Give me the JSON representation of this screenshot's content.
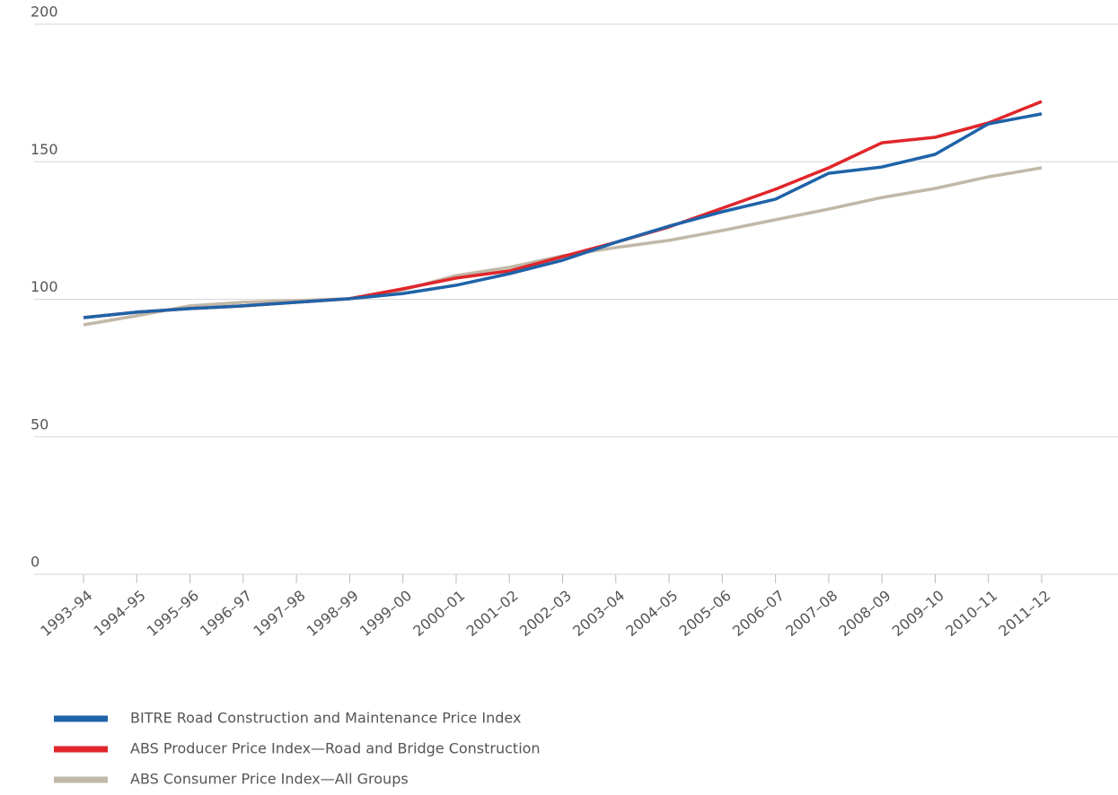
{
  "chart_data": {
    "type": "line",
    "categories": [
      "1993–94",
      "1994–95",
      "1995–96",
      "1996–97",
      "1997–98",
      "1998–99",
      "1999–00",
      "2000–01",
      "2001–02",
      "2002–03",
      "2003–04",
      "2004–05",
      "2005–06",
      "2006–07",
      "2007–08",
      "2008–09",
      "2009–10",
      "2010–11",
      "2011–12"
    ],
    "series": [
      {
        "name": "BITRE Road Construction and Maintenance Price Index",
        "color": "#1f63a8",
        "values": [
          93.3,
          95.3,
          96.6,
          97.6,
          98.9,
          100.2,
          102.1,
          105.1,
          109.3,
          114.2,
          120.7,
          126.6,
          131.8,
          136.4,
          145.8,
          148.1,
          152.7,
          163.8,
          167.4
        ]
      },
      {
        "name": "ABS Producer Price Index—Road and Bridge Construction",
        "color": "#e0262b",
        "values": [
          93.3,
          95.3,
          96.6,
          97.6,
          98.9,
          100.2,
          103.8,
          107.7,
          110.3,
          115.5,
          120.7,
          126.3,
          133.1,
          140.0,
          147.8,
          156.9,
          158.9,
          164.1,
          171.9
        ]
      },
      {
        "name": "ABS Consumer Price Index—All Groups",
        "color": "#c2b8a8",
        "values": [
          90.7,
          94.0,
          97.6,
          98.9,
          99.5,
          100.2,
          103.4,
          108.6,
          111.6,
          115.8,
          118.8,
          121.4,
          125.0,
          128.9,
          132.8,
          137.0,
          140.3,
          144.5,
          147.8
        ]
      }
    ],
    "ylim": [
      0,
      200
    ],
    "yticks": [
      0,
      50,
      100,
      150,
      200
    ],
    "grid": true
  }
}
